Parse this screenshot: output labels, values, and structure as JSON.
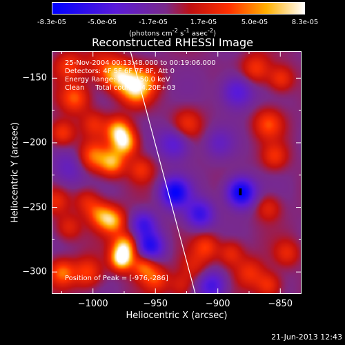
{
  "colorbar": {
    "ticks": [
      "-8.3e-05",
      "-5.0e-05",
      "-1.7e-05",
      "1.7e-05",
      "5.0e-05",
      "8.3e-05"
    ],
    "tick_values": [
      -8.3e-05,
      -5e-05,
      -1.7e-05,
      1.7e-05,
      5e-05,
      8.3e-05
    ],
    "units_html": "(photons cm<sup>-2</sup> s<sup>-1</sup> asec<sup>-2</sup>)"
  },
  "info": {
    "line1": "25-Nov-2004 00:13:48.000 to 00:19:06.000",
    "line2": "Detectors: 4F 5F 6F 7F 8F, Att 0",
    "line3": "Energy Range: 25.0 - 50.0 keV",
    "line4": "Clean     Total counts: 4.20E+03",
    "peak": "Position of Peak = [-976,-286]"
  },
  "chart_data": {
    "type": "heatmap",
    "title": "Reconstructed RHESSI Image",
    "xlabel": "Heliocentric X (arcsec)",
    "ylabel": "Heliocentric Y (arcsec)",
    "xlim": [
      -1033,
      -833
    ],
    "ylim": [
      -317,
      -129
    ],
    "x_ticks": [
      -1000,
      -950,
      -900,
      -850
    ],
    "y_ticks": [
      -150,
      -200,
      -250,
      -300
    ],
    "peak_position": [
      -976,
      -286
    ],
    "limb_line": [
      [
        -970,
        -129
      ],
      [
        -918,
        -317
      ]
    ],
    "color_scale": {
      "min": -8.3e-05,
      "max": 8.3e-05,
      "colormap": "rainbow-heat (blue-purple-red-yellow-white)"
    },
    "blobs": [
      {
        "x": -1020,
        "y": -140,
        "v": 0.45,
        "s": 8
      },
      {
        "x": -995,
        "y": -140,
        "v": 0.3,
        "s": 9
      },
      {
        "x": -982,
        "y": -147,
        "v": 0.7,
        "s": 8
      },
      {
        "x": -970,
        "y": -152,
        "v": 0.65,
        "s": 9
      },
      {
        "x": -965,
        "y": -160,
        "v": 0.55,
        "s": 8
      },
      {
        "x": -1015,
        "y": -165,
        "v": 0.55,
        "s": 8
      },
      {
        "x": -1025,
        "y": -192,
        "v": 0.5,
        "s": 7
      },
      {
        "x": -1000,
        "y": -185,
        "v": 0.35,
        "s": 7
      },
      {
        "x": -980,
        "y": -190,
        "v": 0.8,
        "s": 7
      },
      {
        "x": -975,
        "y": -200,
        "v": 0.85,
        "s": 7
      },
      {
        "x": -1000,
        "y": -210,
        "v": 0.6,
        "s": 8
      },
      {
        "x": -985,
        "y": -215,
        "v": 0.75,
        "s": 7
      },
      {
        "x": -962,
        "y": -220,
        "v": 0.4,
        "s": 7
      },
      {
        "x": -1020,
        "y": -220,
        "v": -0.3,
        "s": 10
      },
      {
        "x": -1030,
        "y": -245,
        "v": 0.35,
        "s": 7
      },
      {
        "x": -1005,
        "y": -245,
        "v": 0.35,
        "s": 7
      },
      {
        "x": -995,
        "y": -255,
        "v": 0.55,
        "s": 7
      },
      {
        "x": -985,
        "y": -260,
        "v": 0.75,
        "s": 7
      },
      {
        "x": -1020,
        "y": -265,
        "v": 0.35,
        "s": 7
      },
      {
        "x": -975,
        "y": -280,
        "v": 0.9,
        "s": 7
      },
      {
        "x": -978,
        "y": -290,
        "v": 0.95,
        "s": 6
      },
      {
        "x": -1025,
        "y": -300,
        "v": 0.6,
        "s": 7
      },
      {
        "x": -1005,
        "y": -300,
        "v": 0.5,
        "s": 8
      },
      {
        "x": -960,
        "y": -295,
        "v": 0.6,
        "s": 7
      },
      {
        "x": -950,
        "y": -305,
        "v": 0.45,
        "s": 7
      },
      {
        "x": -955,
        "y": -150,
        "v": 0.35,
        "s": 7
      },
      {
        "x": -925,
        "y": -185,
        "v": 0.4,
        "s": 8
      },
      {
        "x": -935,
        "y": -200,
        "v": -0.45,
        "s": 9
      },
      {
        "x": -870,
        "y": -142,
        "v": 0.45,
        "s": 8
      },
      {
        "x": -850,
        "y": -150,
        "v": 0.45,
        "s": 7
      },
      {
        "x": -885,
        "y": -160,
        "v": -0.5,
        "s": 9
      },
      {
        "x": -860,
        "y": -185,
        "v": 0.5,
        "s": 8
      },
      {
        "x": -855,
        "y": -210,
        "v": 0.4,
        "s": 7
      },
      {
        "x": -900,
        "y": -200,
        "v": -0.25,
        "s": 8
      },
      {
        "x": -935,
        "y": -238,
        "v": -0.85,
        "s": 8
      },
      {
        "x": -915,
        "y": -255,
        "v": -0.6,
        "s": 8
      },
      {
        "x": -882,
        "y": -238,
        "v": -0.95,
        "s": 8
      },
      {
        "x": -860,
        "y": -250,
        "v": 0.35,
        "s": 7
      },
      {
        "x": -910,
        "y": -280,
        "v": 0.45,
        "s": 7
      },
      {
        "x": -920,
        "y": -295,
        "v": 0.3,
        "s": 8
      },
      {
        "x": -955,
        "y": -280,
        "v": -0.7,
        "s": 8
      },
      {
        "x": -960,
        "y": -262,
        "v": -0.5,
        "s": 7
      },
      {
        "x": -890,
        "y": -285,
        "v": 0.4,
        "s": 7
      },
      {
        "x": -875,
        "y": -300,
        "v": 0.4,
        "s": 8
      },
      {
        "x": -845,
        "y": -285,
        "v": 0.35,
        "s": 7
      },
      {
        "x": -860,
        "y": -310,
        "v": 0.45,
        "s": 7
      },
      {
        "x": -905,
        "y": -310,
        "v": -0.55,
        "s": 8
      },
      {
        "x": -930,
        "y": -310,
        "v": 0.3,
        "s": 7
      }
    ]
  },
  "footer": "21-Jun-2013 12:43"
}
